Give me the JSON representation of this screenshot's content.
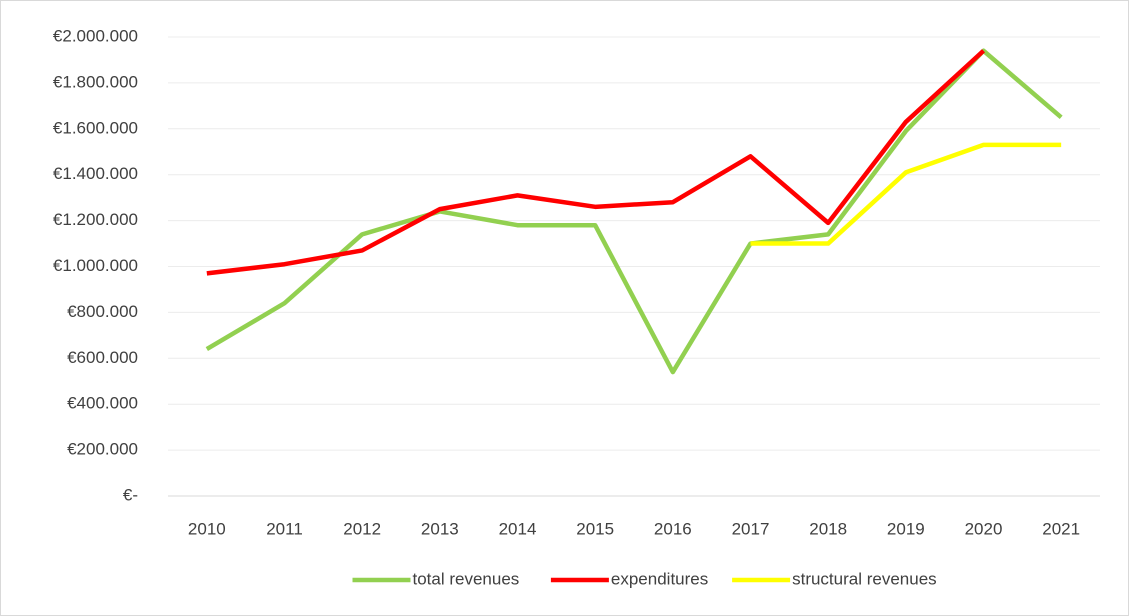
{
  "chart_data": {
    "type": "line",
    "categories": [
      "2010",
      "2011",
      "2012",
      "2013",
      "2014",
      "2015",
      "2016",
      "2017",
      "2018",
      "2019",
      "2020",
      "2021"
    ],
    "series": [
      {
        "name": "total revenues",
        "color": "#92d050",
        "values": [
          640000,
          840000,
          1140000,
          1240000,
          1180000,
          1180000,
          540000,
          1100000,
          1140000,
          1590000,
          1940000,
          1650000
        ]
      },
      {
        "name": "expenditures",
        "color": "#ff0000",
        "values": [
          970000,
          1010000,
          1070000,
          1250000,
          1310000,
          1260000,
          1280000,
          1480000,
          1190000,
          1630000,
          1940000,
          null
        ]
      },
      {
        "name": "structural revenues",
        "color": "#ffff00",
        "values": [
          null,
          null,
          null,
          null,
          null,
          null,
          null,
          1100000,
          1100000,
          1410000,
          1530000,
          1530000
        ]
      }
    ],
    "ylim": [
      0,
      2000000
    ],
    "yticks": [
      {
        "value": 0,
        "label": "€-"
      },
      {
        "value": 200000,
        "label": "€200.000"
      },
      {
        "value": 400000,
        "label": "€400.000"
      },
      {
        "value": 600000,
        "label": "€600.000"
      },
      {
        "value": 800000,
        "label": "€800.000"
      },
      {
        "value": 1000000,
        "label": "€1.000.000"
      },
      {
        "value": 1200000,
        "label": "€1.200.000"
      },
      {
        "value": 1400000,
        "label": "€1.400.000"
      },
      {
        "value": 1600000,
        "label": "€1.600.000"
      },
      {
        "value": 1800000,
        "label": "€1.800.000"
      },
      {
        "value": 2000000,
        "label": "€2.000.000"
      }
    ],
    "grid": true,
    "legend": "bottom"
  }
}
